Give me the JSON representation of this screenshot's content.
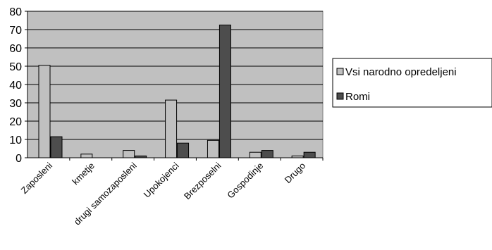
{
  "chart_data": {
    "type": "bar",
    "categories": [
      "Zaposleni",
      "kmetje",
      "drugi samozaposleni",
      "Upokojenci",
      "Brezposelni",
      "Gospodinje",
      "Drugo"
    ],
    "series": [
      {
        "name": "Vsi narodno opredeljeni",
        "values": [
          50.5,
          2,
          4,
          31.5,
          9.5,
          3,
          1
        ],
        "color": "#c0c0c0"
      },
      {
        "name": "Romi",
        "values": [
          11.5,
          0,
          1,
          8,
          72.5,
          4,
          3
        ],
        "color": "#4d4d4d"
      }
    ],
    "ylim": [
      0,
      80
    ],
    "yticks": [
      0,
      10,
      20,
      30,
      40,
      50,
      60,
      70,
      80
    ],
    "grid": true,
    "plot_background": "#c0c0c0",
    "legend_position": "right"
  }
}
